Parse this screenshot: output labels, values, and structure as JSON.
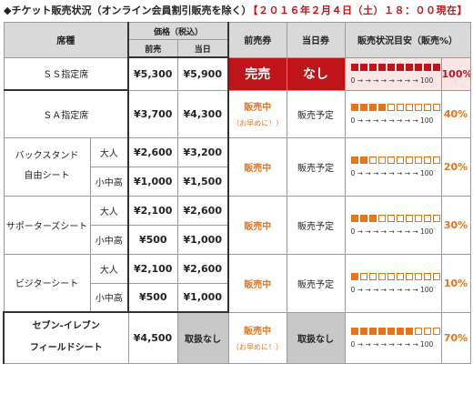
{
  "header": {
    "title": "◆チケット販売状況（オンライン会員割引販売を除く）",
    "timestamp": "【２０１６年２月４日（土）１８：００現在】"
  },
  "columns": {
    "seat": "席種",
    "price": "価格（税込）",
    "advance": "前売",
    "sameday": "当日",
    "advance_ticket": "前売券",
    "sameday_ticket": "当日券",
    "status": "販売状況目安（販売%）"
  },
  "scale_text": "0 → → → → → → → → 100",
  "rows": [
    {
      "seat": "ＳＳ指定席",
      "adv": "¥5,300",
      "day": "¥5,900",
      "adv_ticket": "完売",
      "day_ticket": "なし",
      "level": 10,
      "percent": "100%"
    },
    {
      "seat": "ＳＡ指定席",
      "adv": "¥3,700",
      "day": "¥4,300",
      "adv_ticket": "販売中",
      "hurry": "（お早めに！）",
      "day_ticket": "販売予定",
      "level": 4,
      "percent": "40%"
    },
    {
      "seat": "バックスタンド\n自由シート",
      "sub1": "大人",
      "adv1": "¥2,600",
      "day1": "¥3,200",
      "sub2": "小中高",
      "adv2": "¥1,000",
      "day2": "¥1,500",
      "adv_ticket": "販売中",
      "day_ticket": "販売予定",
      "level": 2,
      "percent": "20%"
    },
    {
      "seat": "サポーターズシート",
      "sub1": "大人",
      "adv1": "¥2,100",
      "day1": "¥2,600",
      "sub2": "小中高",
      "adv2": "¥500",
      "day2": "¥1,000",
      "adv_ticket": "販売中",
      "day_ticket": "販売予定",
      "level": 3,
      "percent": "30%"
    },
    {
      "seat": "ビジターシート",
      "sub1": "大人",
      "adv1": "¥2,100",
      "day1": "¥2,600",
      "sub2": "小中高",
      "adv2": "¥500",
      "day2": "¥1,000",
      "adv_ticket": "販売中",
      "day_ticket": "販売予定",
      "level": 1,
      "percent": "10%"
    },
    {
      "seat": "セブン-イレブン\nフィールドシート",
      "adv": "¥4,500",
      "day": "取扱なし",
      "adv_ticket": "販売中",
      "hurry": "（お早めに！）",
      "day_ticket": "取扱なし",
      "level": 7,
      "percent": "70%"
    }
  ]
}
